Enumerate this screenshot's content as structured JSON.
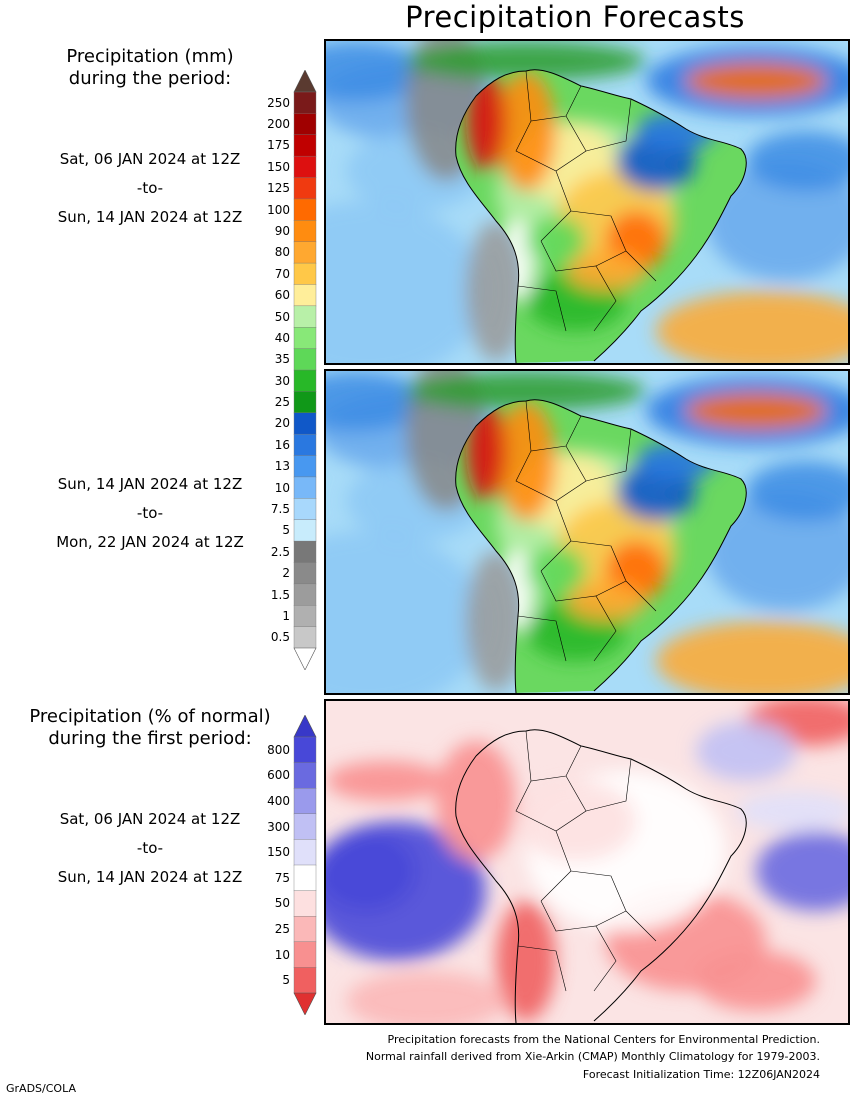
{
  "title": "Precipitation Forecasts",
  "amount_heading": {
    "line1": "Precipitation (mm)",
    "line2": "during the period:"
  },
  "percent_heading": {
    "line1": "Precipitation (% of normal)",
    "line2": "during the first period:"
  },
  "period1": {
    "start": "Sat, 06 JAN 2024 at 12Z",
    "sep": "-to-",
    "end": "Sun, 14 JAN 2024 at 12Z"
  },
  "period2": {
    "start": "Sun, 14 JAN 2024 at 12Z",
    "sep": "-to-",
    "end": "Mon, 22 JAN 2024 at 12Z"
  },
  "period3": {
    "start": "Sat, 06 JAN 2024 at 12Z",
    "sep": "-to-",
    "end": "Sun, 14 JAN 2024 at 12Z"
  },
  "mm_scale": {
    "labels": [
      "250",
      "200",
      "175",
      "150",
      "125",
      "100",
      "90",
      "80",
      "70",
      "60",
      "50",
      "40",
      "35",
      "30",
      "25",
      "20",
      "16",
      "13",
      "10",
      "7.5",
      "5",
      "2.5",
      "2",
      "1.5",
      "1",
      "0.5"
    ],
    "colors": [
      "#7a1a1a",
      "#a00000",
      "#c00000",
      "#dd1010",
      "#f03a10",
      "#ff6a00",
      "#ff8c10",
      "#ffa830",
      "#ffc848",
      "#ffee9a",
      "#b8f0a8",
      "#88e878",
      "#5ed858",
      "#28b828",
      "#109818",
      "#1058c8",
      "#2a78e0",
      "#4898f0",
      "#78b8f8",
      "#a8d8fc",
      "#c8ecfc",
      "#787878",
      "#8a8a8a",
      "#9c9c9c",
      "#b0b0b0",
      "#c8c8c8"
    ],
    "top_arrow_color": "#5a3a30",
    "bottom_arrow_color": "#ffffff"
  },
  "pct_scale": {
    "labels": [
      "800",
      "600",
      "400",
      "300",
      "150",
      "75",
      "50",
      "25",
      "10",
      "5"
    ],
    "colors": [
      "#4848d8",
      "#6a6ae0",
      "#9a9aec",
      "#c0c0f4",
      "#e0e0fa",
      "#ffffff",
      "#fde0e0",
      "#fbb8b8",
      "#f89090",
      "#f06060"
    ],
    "top_arrow_color": "#3838c8",
    "bottom_arrow_color": "#e03030"
  },
  "footer": {
    "line1": "Precipitation forecasts from the National Centers for Environmental Prediction.",
    "line2": "Normal rainfall derived from Xie-Arkin (CMAP) Monthly Climatology for 1979-2003.",
    "line3": "Forecast Initialization Time: 12Z06JAN2024"
  },
  "credit": "GrADS/COLA"
}
